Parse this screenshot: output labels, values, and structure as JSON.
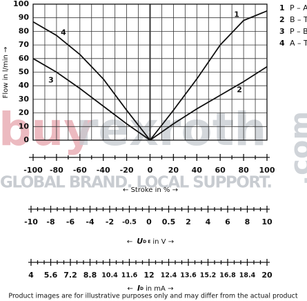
{
  "chart_data": {
    "type": "line",
    "ylabel": "Flow in l/min →",
    "xlabel": "← Stroke in % →",
    "xlim": [
      -100,
      100
    ],
    "ylim": [
      0,
      100
    ],
    "xticks": [
      -100,
      -80,
      -60,
      -40,
      -20,
      0,
      20,
      40,
      60,
      80,
      100
    ],
    "yticks": [
      0,
      10,
      20,
      30,
      40,
      50,
      60,
      70,
      80,
      90,
      100
    ],
    "grid": true,
    "series": [
      {
        "label": "1",
        "name": "P – A",
        "color": "#111111",
        "x": [
          0,
          20,
          40,
          60,
          80,
          100
        ],
        "values": [
          0,
          22,
          45,
          70,
          88,
          95
        ]
      },
      {
        "label": "2",
        "name": "B – T",
        "color": "#111111",
        "x": [
          0,
          20,
          40,
          60,
          80,
          100
        ],
        "values": [
          0,
          12,
          23,
          33,
          43,
          54
        ]
      },
      {
        "label": "3",
        "name": "P – B",
        "color": "#111111",
        "x": [
          -100,
          -80,
          -60,
          -40,
          -20,
          0
        ],
        "values": [
          60,
          50,
          38,
          25,
          12,
          0
        ]
      },
      {
        "label": "4",
        "name": "A – T",
        "color": "#111111",
        "x": [
          -100,
          -80,
          -60,
          -40,
          -20,
          0
        ],
        "values": [
          87,
          77,
          63,
          45,
          22,
          0
        ]
      }
    ],
    "scales": [
      {
        "prefix": "←",
        "symbol": "U",
        "subscript": "D E",
        "suffix": "in V →",
        "ticks": [
          -10,
          -8,
          -6,
          -4,
          -2,
          -0.5,
          0,
          0.5,
          2,
          4,
          6,
          8,
          10
        ]
      },
      {
        "prefix": "←",
        "symbol": "I",
        "subscript": "D",
        "suffix": "in mA →",
        "ticks": [
          4,
          5.6,
          7.2,
          8.8,
          10.4,
          11.6,
          12,
          12.4,
          13.6,
          15.2,
          16.8,
          18.4,
          20
        ]
      }
    ]
  },
  "watermark": {
    "brand1": "buy",
    "brand2": "rexroth",
    "domain": ".com",
    "slogan": "GLOBAL BRAND. LOCAL SUPPORT."
  },
  "disclaimer": "Product images are for illustrative purposes only and may differ from the actual product"
}
